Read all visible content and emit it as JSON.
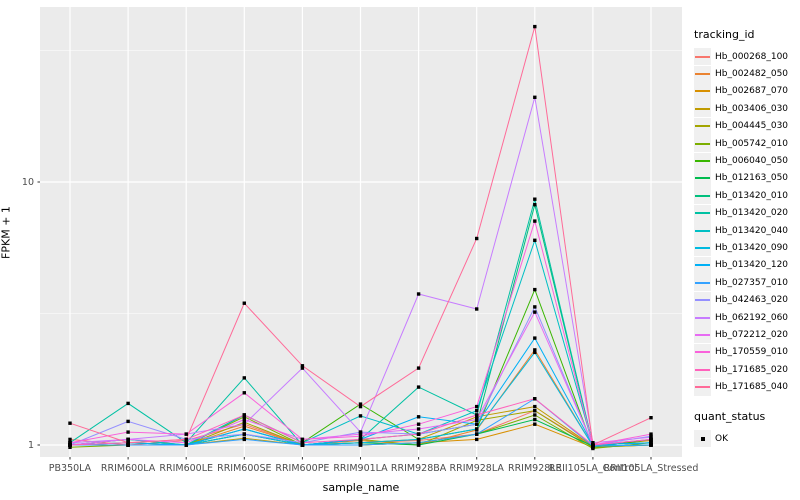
{
  "figure": {
    "panel_bg": "#EBEBEB",
    "grid_color": "#FFFFFF",
    "axis_text_color": "#4D4D4D",
    "tick_color": "#333333",
    "point_color": "#000000"
  },
  "axes": {
    "x_title": "sample_name",
    "y_title": "FPKM + 1"
  },
  "legend": {
    "tracking_title": "tracking_id",
    "quant_title": "quant_status",
    "quant_items": [
      {
        "label": "OK"
      }
    ]
  },
  "chart_data": {
    "type": "line",
    "title": "",
    "xlabel": "sample_name",
    "ylabel": "FPKM + 1",
    "yscale": "log10",
    "ylim": [
      0.9,
      46
    ],
    "y_ticks": [
      {
        "value": 1,
        "label": "1"
      },
      {
        "value": 10,
        "label": "10"
      }
    ],
    "y_minor_ticks": [
      3.1623,
      31.623
    ],
    "grid": true,
    "legend_position": "right",
    "point_shape": "filled-square",
    "point_legend_label": "OK",
    "categories": [
      "PB350LA",
      "RRIM600LA",
      "RRIM600LE",
      "RRIM600SE",
      "RRIM600PE",
      "RRIM901LA",
      "RRIM928BA",
      "RRIM928LA",
      "RRIM928LE",
      "RRII105LA_Control",
      "RRII105LA_Stressed"
    ],
    "series": [
      {
        "name": "Hb_000268_100",
        "color": "#F8766D",
        "values": [
          1.05,
          1.0,
          1.04,
          1.2,
          1.0,
          1.02,
          1.04,
          1.1,
          1.35,
          0.99,
          1.0
        ]
      },
      {
        "name": "Hb_002482_050",
        "color": "#EA8331",
        "values": [
          1.0,
          1.0,
          1.0,
          1.18,
          1.0,
          1.04,
          1.0,
          1.14,
          2.3,
          0.99,
          1.0
        ]
      },
      {
        "name": "Hb_002687_070",
        "color": "#D89000",
        "values": [
          1.0,
          1.0,
          1.0,
          1.1,
          1.0,
          1.0,
          1.02,
          1.05,
          1.2,
          0.98,
          1.0
        ]
      },
      {
        "name": "Hb_003406_030",
        "color": "#C09B00",
        "values": [
          1.0,
          1.0,
          1.0,
          1.06,
          1.0,
          1.02,
          1.05,
          1.28,
          1.4,
          0.99,
          1.04
        ]
      },
      {
        "name": "Hb_004445_030",
        "color": "#A3A500",
        "values": [
          1.0,
          1.0,
          1.0,
          1.22,
          1.0,
          1.05,
          1.0,
          1.24,
          1.35,
          0.98,
          1.0
        ]
      },
      {
        "name": "Hb_005742_010",
        "color": "#7CAE00",
        "values": [
          0.98,
          1.0,
          1.0,
          1.28,
          1.0,
          1.0,
          1.02,
          1.1,
          1.3,
          0.97,
          1.02
        ]
      },
      {
        "name": "Hb_006040_050",
        "color": "#39B600",
        "values": [
          1.0,
          1.02,
          1.0,
          1.3,
          1.02,
          1.43,
          1.05,
          1.15,
          3.9,
          0.98,
          1.05
        ]
      },
      {
        "name": "Hb_012163_050",
        "color": "#00BB4E",
        "values": [
          1.0,
          1.0,
          1.0,
          1.15,
          1.0,
          1.02,
          1.0,
          1.1,
          1.25,
          0.99,
          1.0
        ]
      },
      {
        "name": "Hb_013420_010",
        "color": "#00BF7D",
        "values": [
          1.0,
          1.05,
          1.0,
          1.1,
          1.0,
          1.05,
          1.1,
          1.2,
          8.2,
          1.0,
          1.02
        ]
      },
      {
        "name": "Hb_013420_020",
        "color": "#00C1A3",
        "values": [
          1.02,
          1.44,
          1.02,
          1.8,
          1.0,
          1.05,
          1.66,
          1.3,
          8.6,
          1.0,
          1.05
        ]
      },
      {
        "name": "Hb_013420_040",
        "color": "#00BFC4",
        "values": [
          1.0,
          1.05,
          1.0,
          1.3,
          1.02,
          1.29,
          1.1,
          1.35,
          6.0,
          1.0,
          1.02
        ]
      },
      {
        "name": "Hb_013420_090",
        "color": "#00BAE0",
        "values": [
          1.0,
          1.0,
          1.0,
          1.1,
          1.0,
          1.02,
          1.05,
          1.15,
          2.25,
          0.99,
          1.0
        ]
      },
      {
        "name": "Hb_013420_120",
        "color": "#00B0F6",
        "values": [
          1.0,
          1.02,
          1.0,
          1.15,
          1.0,
          1.05,
          1.28,
          1.2,
          2.55,
          1.0,
          1.02
        ]
      },
      {
        "name": "Hb_027357_010",
        "color": "#35A2FF",
        "values": [
          1.0,
          1.0,
          1.0,
          1.05,
          1.0,
          1.0,
          1.02,
          1.1,
          1.5,
          0.99,
          1.0
        ]
      },
      {
        "name": "Hb_042463_020",
        "color": "#9590FF",
        "values": [
          1.0,
          1.23,
          1.05,
          1.1,
          1.02,
          1.12,
          1.1,
          1.2,
          3.35,
          1.0,
          1.08
        ]
      },
      {
        "name": "Hb_062192_060",
        "color": "#C77CFF",
        "values": [
          1.02,
          1.05,
          1.1,
          1.2,
          1.96,
          1.12,
          3.75,
          3.29,
          21.0,
          1.02,
          1.07
        ]
      },
      {
        "name": "Hb_072212_020",
        "color": "#E76BF3",
        "values": [
          1.0,
          1.05,
          1.02,
          1.25,
          1.05,
          1.1,
          1.15,
          1.25,
          3.2,
          1.0,
          1.05
        ]
      },
      {
        "name": "Hb_170559_010",
        "color": "#FA62DB",
        "values": [
          1.02,
          1.12,
          1.1,
          1.58,
          1.05,
          1.08,
          1.2,
          1.4,
          7.1,
          1.0,
          1.1
        ]
      },
      {
        "name": "Hb_171685_020",
        "color": "#FF62BC",
        "values": [
          1.0,
          1.02,
          1.05,
          1.3,
          1.02,
          1.05,
          1.1,
          1.3,
          1.5,
          1.0,
          1.05
        ]
      },
      {
        "name": "Hb_171685_040",
        "color": "#FF6A98",
        "values": [
          1.21,
          1.02,
          1.05,
          3.46,
          2.0,
          1.4,
          1.96,
          6.1,
          39.0,
          1.0,
          1.27
        ]
      }
    ]
  }
}
